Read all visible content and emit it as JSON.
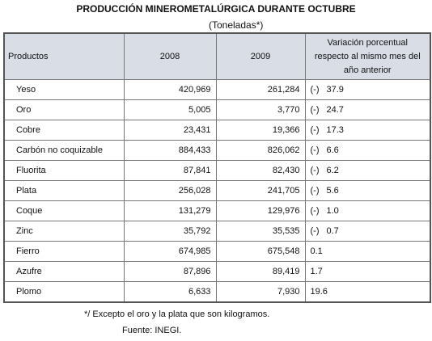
{
  "header": {
    "title": "PRODUCCIÓN MINEROMETALÚRGICA DURANTE OCTUBRE",
    "subtitle": "(Toneladas*)"
  },
  "table": {
    "columns": [
      "Productos",
      "2008",
      "2009",
      "Variación porcentual respecto al mismo mes del año anterior"
    ],
    "rows": [
      {
        "product": "Yeso",
        "y2008": "420,969",
        "y2009": "261,284",
        "sign": "(-)",
        "change": "37.9"
      },
      {
        "product": "Oro",
        "y2008": "5,005",
        "y2009": "3,770",
        "sign": "(-)",
        "change": "24.7"
      },
      {
        "product": "Cobre",
        "y2008": "23,431",
        "y2009": "19,366",
        "sign": "(-)",
        "change": "17.3"
      },
      {
        "product": "Carbón no coquizable",
        "y2008": "884,433",
        "y2009": "826,062",
        "sign": "(-)",
        "change": "6.6"
      },
      {
        "product": "Fluorita",
        "y2008": "87,841",
        "y2009": "82,430",
        "sign": "(-)",
        "change": "6.2"
      },
      {
        "product": "Plata",
        "y2008": "256,028",
        "y2009": "241,705",
        "sign": "(-)",
        "change": "5.6"
      },
      {
        "product": "Coque",
        "y2008": "131,279",
        "y2009": "129,976",
        "sign": "(-)",
        "change": "1.0"
      },
      {
        "product": "Zinc",
        "y2008": "35,792",
        "y2009": "35,535",
        "sign": "(-)",
        "change": "0.7"
      },
      {
        "product": "Fierro",
        "y2008": "674,985",
        "y2009": "675,548",
        "change": "0.1"
      },
      {
        "product": "Azufre",
        "y2008": "87,896",
        "y2009": "89,419",
        "change": "1.7"
      },
      {
        "product": "Plomo",
        "y2008": "6,633",
        "y2009": "7,930",
        "change": "19.6"
      }
    ]
  },
  "footer": {
    "note": "*/ Excepto el oro y la plata que son kilogramos.",
    "source": "Fuente: INEGI."
  }
}
